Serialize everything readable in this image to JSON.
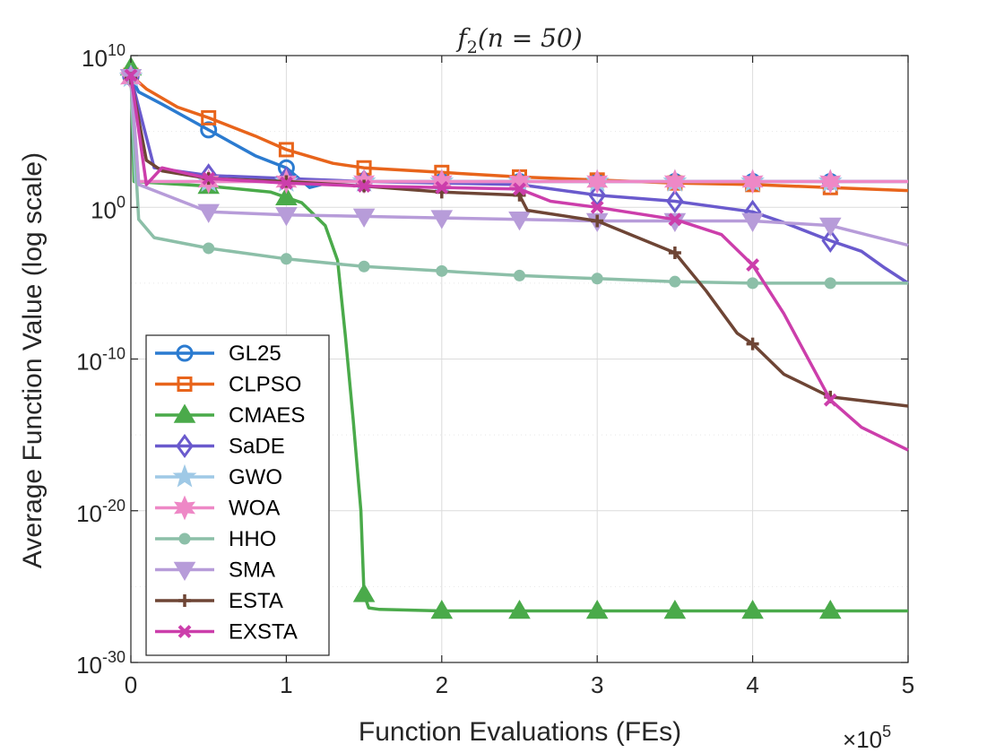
{
  "chart_data": {
    "type": "line",
    "title": "f2(n = 50)",
    "title_parts": {
      "base": "f",
      "sub": "2",
      "args": "(n = 50)"
    },
    "xlabel": "Function Evaluations (FEs)",
    "ylabel": "Average Function Value (log scale)",
    "x_multiplier_label": {
      "times": "×",
      "base": "10",
      "exp": "5"
    },
    "xlim": [
      0,
      5
    ],
    "x_ticks": [
      "0",
      "1",
      "2",
      "3",
      "4",
      "5"
    ],
    "ylim_log10": [
      -30,
      10
    ],
    "y_ticks": [
      {
        "base": "10",
        "exp": "10",
        "value": 10
      },
      {
        "base": "10",
        "exp": "0",
        "value": 0
      },
      {
        "base": "10",
        "exp": "-10",
        "value": -10
      },
      {
        "base": "10",
        "exp": "-20",
        "value": -20
      },
      {
        "base": "10",
        "exp": "-30",
        "value": -30
      }
    ],
    "grid": true,
    "legend_position": "bottom-left",
    "marker_x": [
      0,
      0.5,
      1,
      1.5,
      2,
      2.5,
      3,
      3.5,
      4,
      4.5
    ],
    "series": [
      {
        "name": "GL25",
        "color": "#2b7bd0",
        "marker": "circle",
        "x": [
          0,
          0.05,
          0.2,
          0.5,
          0.8,
          1.0,
          1.15,
          1.3,
          1.5,
          2.0,
          3.0,
          4.0,
          5.0
        ],
        "y": [
          8.6,
          7.6,
          6.8,
          5.1,
          3.4,
          2.6,
          1.3,
          1.7,
          1.7,
          1.7,
          1.7,
          1.7,
          1.7
        ]
      },
      {
        "name": "CLPSO",
        "color": "#e8641b",
        "marker": "square",
        "x": [
          0,
          0.1,
          0.3,
          0.5,
          0.8,
          1.0,
          1.3,
          1.5,
          2.0,
          2.5,
          3.0,
          3.5,
          4.0,
          4.5,
          5.0
        ],
        "y": [
          8.7,
          7.8,
          6.6,
          5.9,
          4.7,
          3.8,
          2.9,
          2.6,
          2.3,
          2.0,
          1.8,
          1.6,
          1.5,
          1.3,
          1.1
        ]
      },
      {
        "name": "CMAES",
        "color": "#4aaa4a",
        "marker": "triangle-up",
        "x": [
          0,
          0.02,
          0.5,
          0.9,
          1.1,
          1.25,
          1.33,
          1.38,
          1.43,
          1.48,
          1.5,
          1.53,
          1.6,
          2.0,
          2.5,
          3.0,
          4.0,
          5.0
        ],
        "y": [
          9.2,
          1.7,
          1.4,
          1.0,
          0.3,
          -1.2,
          -3.5,
          -8.5,
          -14.0,
          -20.0,
          -25.5,
          -26.4,
          -26.5,
          -26.6,
          -26.6,
          -26.6,
          -26.6,
          -26.6
        ]
      },
      {
        "name": "SaDE",
        "color": "#6a5acd",
        "marker": "diamond",
        "x": [
          0,
          0.15,
          0.5,
          1.0,
          1.5,
          2.0,
          2.5,
          3.0,
          3.5,
          4.0,
          4.2,
          4.5,
          4.7,
          4.85,
          5.0
        ],
        "y": [
          8.6,
          2.6,
          2.1,
          1.9,
          1.7,
          1.6,
          1.5,
          0.8,
          0.4,
          -0.3,
          -1.0,
          -2.2,
          -2.9,
          -4.0,
          -5.0
        ]
      },
      {
        "name": "GWO",
        "color": "#9fc9e6",
        "marker": "star",
        "x": [
          0,
          0.03,
          0.5,
          1.0,
          2.0,
          3.0,
          4.0,
          5.0
        ],
        "y": [
          8.6,
          1.7,
          1.7,
          1.7,
          1.7,
          1.7,
          1.7,
          1.7
        ]
      },
      {
        "name": "WOA",
        "color": "#ee88c6",
        "marker": "star6",
        "x": [
          0,
          0.05,
          0.5,
          1.0,
          2.0,
          3.0,
          4.0,
          5.0
        ],
        "y": [
          8.5,
          1.7,
          1.7,
          1.7,
          1.7,
          1.7,
          1.7,
          1.7
        ]
      },
      {
        "name": "HHO",
        "color": "#8cbfa8",
        "marker": "dot",
        "x": [
          0,
          0.05,
          0.15,
          0.5,
          1.0,
          1.5,
          2.0,
          2.5,
          3.0,
          3.5,
          4.0,
          4.5,
          5.0
        ],
        "y": [
          8.5,
          -0.8,
          -2.0,
          -2.7,
          -3.4,
          -3.9,
          -4.2,
          -4.5,
          -4.7,
          -4.9,
          -5.0,
          -5.0,
          -5.0
        ]
      },
      {
        "name": "SMA",
        "color": "#b79cd9",
        "marker": "triangle-down",
        "x": [
          0,
          0.05,
          0.5,
          1.0,
          1.5,
          2.0,
          2.5,
          3.0,
          3.5,
          4.0,
          4.5,
          5.0
        ],
        "y": [
          8.6,
          1.5,
          -0.3,
          -0.5,
          -0.6,
          -0.7,
          -0.8,
          -0.9,
          -0.9,
          -0.9,
          -1.2,
          -2.5
        ]
      },
      {
        "name": "ESTA",
        "color": "#6e4535",
        "marker": "plus",
        "x": [
          0,
          0.1,
          0.2,
          0.5,
          1.0,
          1.5,
          2.0,
          2.5,
          2.55,
          3.0,
          3.5,
          3.7,
          3.9,
          4.0,
          4.2,
          4.5,
          5.0
        ],
        "y": [
          8.5,
          3.1,
          2.4,
          1.9,
          1.7,
          1.4,
          1.0,
          0.8,
          -0.2,
          -0.9,
          -3.0,
          -5.5,
          -8.3,
          -9.0,
          -11.0,
          -12.5,
          -13.1
        ]
      },
      {
        "name": "EXSTA",
        "color": "#cc3eab",
        "marker": "x",
        "x": [
          0,
          0.1,
          0.2,
          0.5,
          1.0,
          1.5,
          2.5,
          2.7,
          3.0,
          3.5,
          3.8,
          4.0,
          4.2,
          4.5,
          4.7,
          5.0
        ],
        "y": [
          8.7,
          1.5,
          2.6,
          1.9,
          1.6,
          1.4,
          1.2,
          0.4,
          0.0,
          -0.8,
          -1.8,
          -3.8,
          -7.0,
          -12.7,
          -14.5,
          -16.0
        ]
      }
    ]
  }
}
